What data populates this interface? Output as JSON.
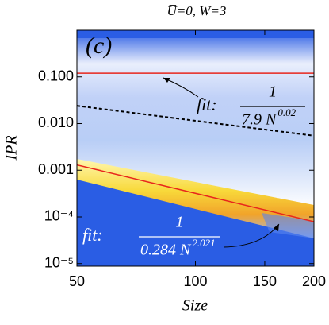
{
  "chart_data": {
    "type": "line",
    "title": "U̅=0, W=3",
    "panel_label": "(c)",
    "x_label": "Size",
    "y_label": "IPR",
    "xscale": "log",
    "yscale": "log",
    "xlim": [
      50,
      200
    ],
    "ylim": [
      8.8e-06,
      1
    ],
    "xticks": [
      50,
      100,
      150,
      200
    ],
    "yticks": [
      {
        "value": 0.1,
        "label": "0.100"
      },
      {
        "value": 0.01,
        "label": "0.010"
      },
      {
        "value": 0.001,
        "label": "0.001"
      },
      {
        "value": 0.0001,
        "label": "10⁻⁴"
      },
      {
        "value": 1e-05,
        "label": "10⁻⁵"
      }
    ],
    "lines": [
      {
        "color": "#e8261c",
        "style": "solid",
        "x": [
          50,
          200
        ],
        "values": [
          0.12,
          0.12
        ]
      },
      {
        "color": "#000000",
        "style": "dashed",
        "x": [
          50,
          200
        ],
        "values": [
          0.024,
          0.0055
        ]
      },
      {
        "color": "#e8261c",
        "style": "solid",
        "x": [
          50,
          200
        ],
        "values": [
          0.0013,
          7.9e-05
        ]
      }
    ],
    "annotations": [
      {
        "prefix": "fit:",
        "numerator": "1",
        "denominator": "7.9 N",
        "exponent": "0.02"
      },
      {
        "prefix": "fit:",
        "numerator": "1",
        "denominator": "0.284 N",
        "exponent": "2.021"
      }
    ]
  }
}
